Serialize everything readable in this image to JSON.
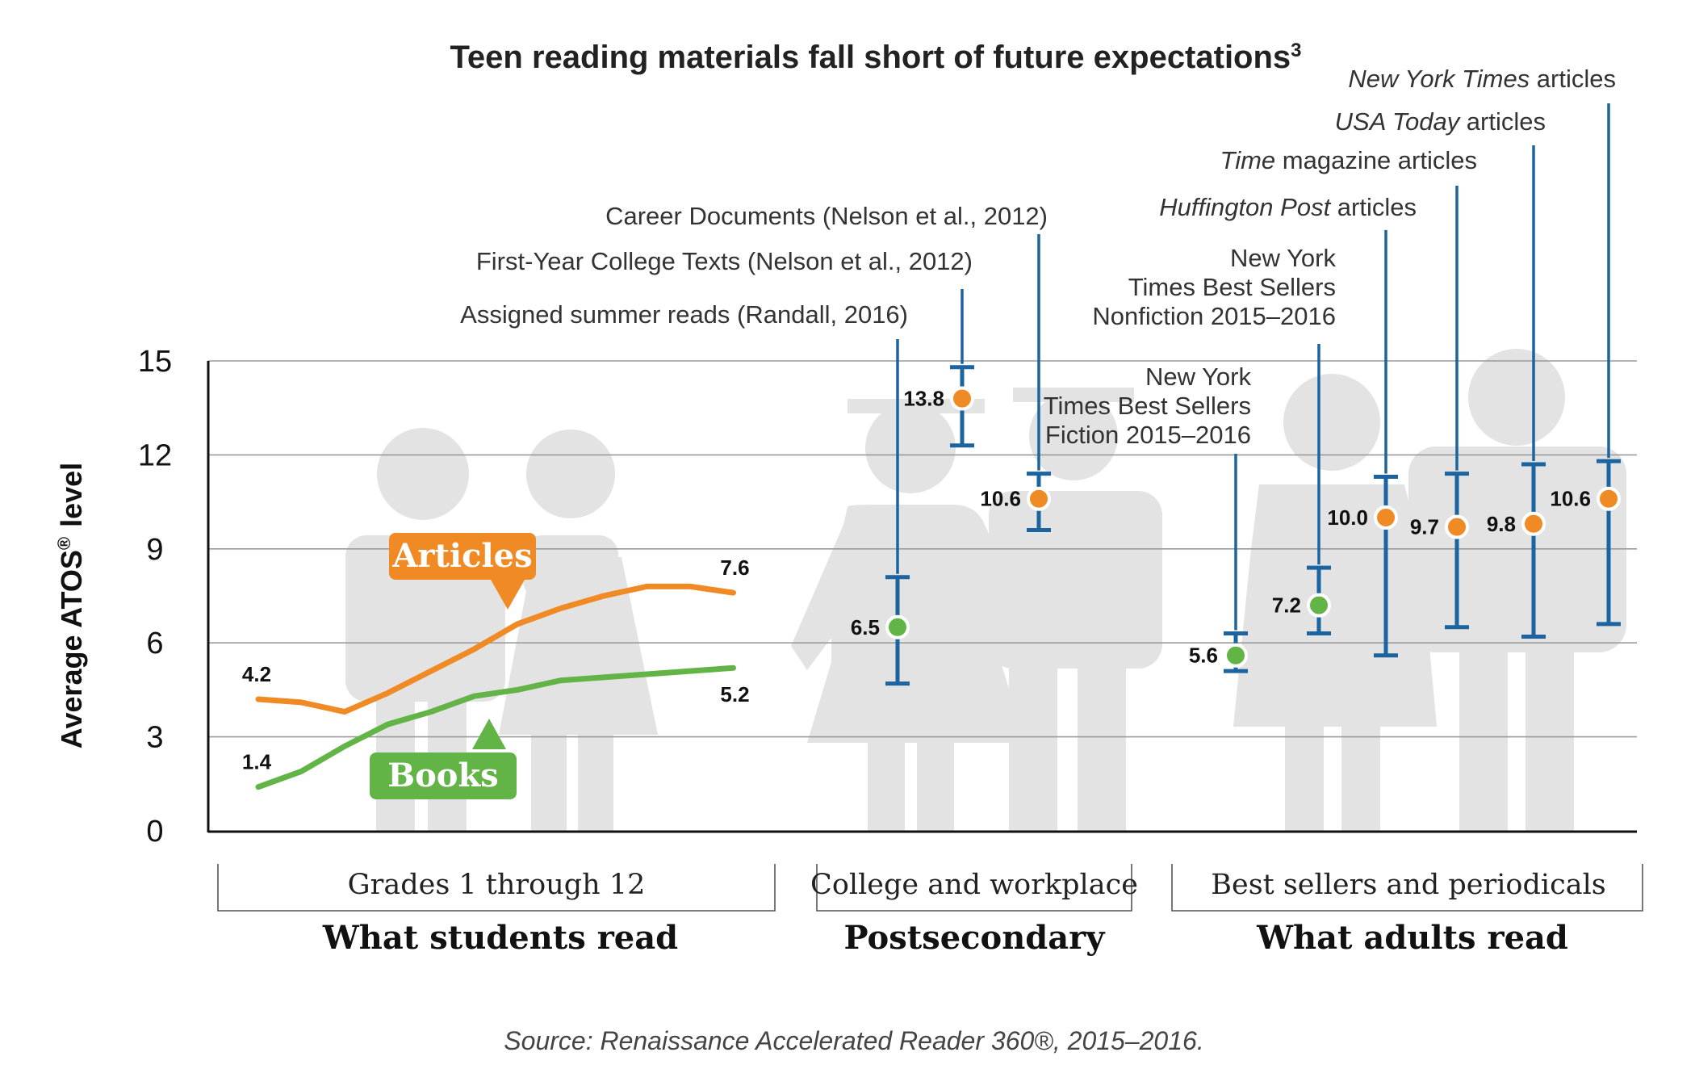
{
  "title": "Teen reading materials fall short of future expectations",
  "title_sup": "3",
  "source": "Source: Renaissance Accelerated Reader 360®, 2015–2016.",
  "colors": {
    "articles": "#f08a24",
    "books": "#62b446",
    "errorbar": "#1b64a0",
    "silhouette": "#e3e3e3"
  },
  "icons": [
    "students-silhouette",
    "graduates-silhouette",
    "adults-silhouette"
  ],
  "chart_data": {
    "type": "line",
    "ylabel": "Average ATOS",
    "ylabel_sup": "®",
    "ylabel_suffix": "level",
    "ylim": [
      0,
      15
    ],
    "yticks": [
      0,
      3,
      6,
      9,
      12,
      15
    ],
    "grid": true,
    "series": [
      {
        "name": "Articles",
        "x": [
          1,
          2,
          3,
          4,
          5,
          6,
          7,
          8,
          9,
          10,
          11,
          12
        ],
        "values": [
          4.2,
          4.1,
          3.8,
          4.4,
          5.1,
          5.8,
          6.6,
          7.1,
          7.5,
          7.8,
          7.8,
          7.6
        ],
        "start_label": "4.2",
        "end_label": "7.6"
      },
      {
        "name": "Books",
        "x": [
          1,
          2,
          3,
          4,
          5,
          6,
          7,
          8,
          9,
          10,
          11,
          12
        ],
        "values": [
          1.4,
          1.9,
          2.7,
          3.4,
          3.8,
          4.3,
          4.5,
          4.8,
          4.9,
          5.0,
          5.1,
          5.2
        ],
        "start_label": "1.4",
        "end_label": "5.2"
      }
    ],
    "points": [
      {
        "label": "Assigned summer reads (Randall, 2016)",
        "value": 6.5,
        "value_label": "6.5",
        "low": 4.7,
        "high": 8.1,
        "color": "green"
      },
      {
        "label": "First-Year College Texts (Nelson et al., 2012)",
        "value": 13.8,
        "value_label": "13.8",
        "low": 12.3,
        "high": 14.8,
        "color": "orange"
      },
      {
        "label": "Career Documents (Nelson et al., 2012)",
        "value": 10.6,
        "value_label": "10.6",
        "low": 9.6,
        "high": 11.4,
        "color": "orange"
      },
      {
        "label": "New York Times Best Sellers Fiction 2015–2016",
        "label_lines": [
          "New York",
          "Times Best Sellers",
          "Fiction 2015–2016"
        ],
        "value": 5.6,
        "value_label": "5.6",
        "low": 5.1,
        "high": 6.3,
        "color": "green"
      },
      {
        "label": "New York Times Best Sellers Nonfiction 2015–2016",
        "label_lines": [
          "New York",
          "Times Best Sellers",
          "Nonfiction 2015–2016"
        ],
        "value": 7.2,
        "value_label": "7.2",
        "low": 6.3,
        "high": 8.4,
        "color": "green"
      },
      {
        "label": "Huffington Post articles",
        "italic": "Huffington Post",
        "rest": " articles",
        "value": 10.0,
        "value_label": "10.0",
        "low": 5.6,
        "high": 11.3,
        "color": "orange"
      },
      {
        "label": "Time magazine articles",
        "italic": "Time",
        "rest": " magazine articles",
        "value": 9.7,
        "value_label": "9.7",
        "low": 6.5,
        "high": 11.4,
        "color": "orange"
      },
      {
        "label": "USA Today articles",
        "italic": "USA Today",
        "rest": " articles",
        "value": 9.8,
        "value_label": "9.8",
        "low": 6.2,
        "high": 11.7,
        "color": "orange"
      },
      {
        "label": "New York Times articles",
        "italic": "New York Times",
        "rest": " articles",
        "value": 10.6,
        "value_label": "10.6",
        "low": 6.6,
        "high": 11.8,
        "color": "orange"
      }
    ],
    "groups": [
      {
        "label": "Grades 1 through 12",
        "section": "What students read"
      },
      {
        "label": "College and workplace",
        "section": "Postsecondary"
      },
      {
        "label": "Best sellers and periodicals",
        "section": "What adults read"
      }
    ]
  }
}
